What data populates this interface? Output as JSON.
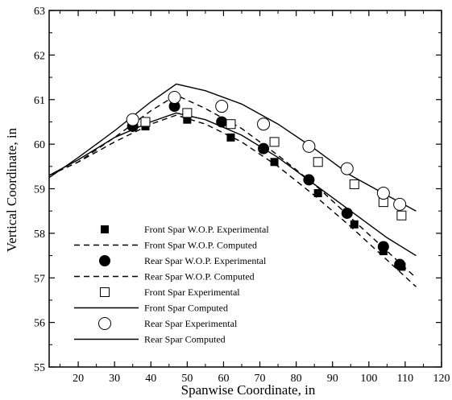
{
  "chart_data": {
    "type": "scatter",
    "title": "",
    "xlabel": "Spanwise Coordinate, in",
    "ylabel": "Vertical Coordinate, in",
    "xlim": [
      12,
      120
    ],
    "ylim": [
      55,
      63
    ],
    "xticks": [
      20,
      30,
      40,
      50,
      60,
      70,
      80,
      90,
      100,
      110,
      120
    ],
    "yticks": [
      55,
      56,
      57,
      58,
      59,
      60,
      61,
      62,
      63
    ],
    "grid": false,
    "legend_position": "lower-left",
    "series": [
      {
        "name": "Front Spar W.O.P. Experimental",
        "kind": "markers",
        "marker": "filled-square",
        "x": [
          35,
          38.5,
          50,
          62,
          74,
          86,
          96,
          104,
          109
        ],
        "y": [
          60.4,
          60.4,
          60.55,
          60.15,
          59.6,
          58.9,
          58.2,
          57.6,
          57.25
        ]
      },
      {
        "name": "Front Spar W.O.P. Computed",
        "kind": "line",
        "dash": "7,5",
        "x": [
          12,
          20,
          30,
          40,
          47,
          55,
          65,
          75,
          85,
          95,
          105,
          113
        ],
        "y": [
          59.3,
          59.6,
          60.05,
          60.45,
          60.65,
          60.45,
          60.05,
          59.5,
          58.85,
          58.15,
          57.4,
          56.8
        ]
      },
      {
        "name": "Rear Spar W.O.P. Experimental",
        "kind": "markers",
        "marker": "filled-circle",
        "x": [
          35,
          46.5,
          59.5,
          71,
          83.5,
          94,
          104,
          108.5
        ],
        "y": [
          60.4,
          60.85,
          60.5,
          59.9,
          59.2,
          58.45,
          57.7,
          57.3
        ]
      },
      {
        "name": "Rear Spar W.O.P. Computed",
        "kind": "line",
        "dash": "7,5",
        "x": [
          12,
          20,
          30,
          40,
          47,
          55,
          65,
          75,
          85,
          95,
          105,
          113
        ],
        "y": [
          59.3,
          59.6,
          60.15,
          60.75,
          61.1,
          60.8,
          60.35,
          59.75,
          59.1,
          58.35,
          57.6,
          57.0
        ]
      },
      {
        "name": "Front Spar Experimental",
        "kind": "markers",
        "marker": "open-square",
        "x": [
          38.5,
          50,
          62,
          74,
          86,
          96,
          104,
          109
        ],
        "y": [
          60.5,
          60.7,
          60.45,
          60.05,
          59.6,
          59.1,
          58.7,
          58.4
        ]
      },
      {
        "name": "Front Spar Computed",
        "kind": "line",
        "dash": "",
        "x": [
          12,
          20,
          30,
          40,
          47,
          55,
          65,
          75,
          85,
          95,
          105,
          113
        ],
        "y": [
          59.3,
          59.65,
          60.15,
          60.5,
          60.7,
          60.55,
          60.2,
          59.7,
          59.1,
          58.5,
          57.9,
          57.5
        ]
      },
      {
        "name": "Rear Spar Experimental",
        "kind": "markers",
        "marker": "open-circle",
        "x": [
          35,
          46.5,
          59.5,
          71,
          83.5,
          94,
          104,
          108.5
        ],
        "y": [
          60.55,
          61.05,
          60.85,
          60.45,
          59.95,
          59.45,
          58.9,
          58.65
        ]
      },
      {
        "name": "Rear Spar Computed",
        "kind": "line",
        "dash": "",
        "x": [
          12,
          20,
          30,
          40,
          47,
          55,
          65,
          75,
          85,
          95,
          105,
          113
        ],
        "y": [
          59.25,
          59.7,
          60.3,
          60.95,
          61.35,
          61.2,
          60.9,
          60.45,
          59.9,
          59.3,
          58.85,
          58.5
        ]
      }
    ]
  }
}
